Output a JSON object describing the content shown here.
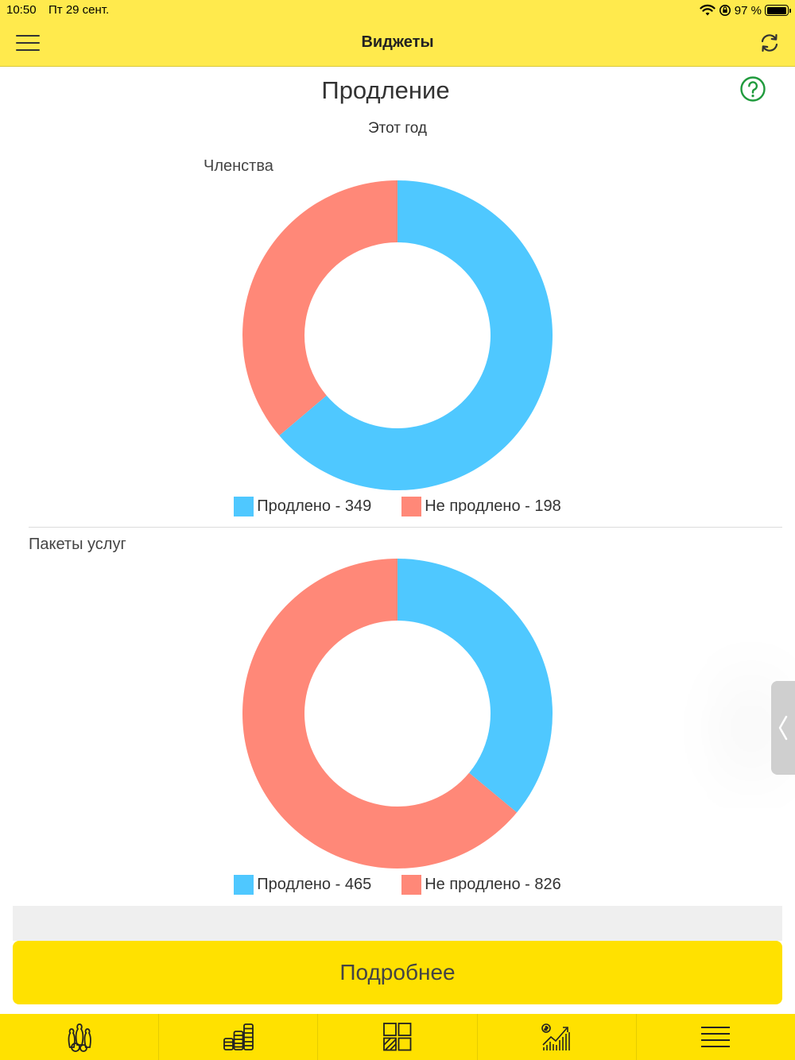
{
  "status_bar": {
    "time": "10:50",
    "date": "Пт 29 сент.",
    "battery": "97 %",
    "battery_level": 0.97
  },
  "nav": {
    "title": "Виджеты",
    "menu_icon": "hamburger-icon",
    "refresh_icon": "refresh-icon"
  },
  "header": {
    "title": "Продление",
    "period": "Этот год",
    "help_icon": "help-circle-icon"
  },
  "colors": {
    "renewed": "#4fc8ff",
    "not_renewed": "#ff8878",
    "accent": "#ffe100",
    "nav_bg": "#ffea4d",
    "help": "#1f9a3c"
  },
  "chart_data": [
    {
      "type": "pie",
      "title": "Членства",
      "donut": true,
      "series": [
        {
          "name": "Продлено",
          "value": 349
        },
        {
          "name": "Не продлено",
          "value": 198
        }
      ],
      "legend_labels": [
        "Продлено - 349",
        "Не продлено - 198"
      ],
      "legend_position": "bottom"
    },
    {
      "type": "pie",
      "title": "Пакеты услуг",
      "donut": true,
      "series": [
        {
          "name": "Продлено",
          "value": 465
        },
        {
          "name": "Не продлено",
          "value": 826
        }
      ],
      "legend_labels": [
        "Продлено - 465",
        "Не продлено - 826"
      ],
      "legend_position": "bottom"
    }
  ],
  "details_button": "Подробнее",
  "tabbar": [
    {
      "icon": "bowling-pins-icon"
    },
    {
      "icon": "coins-stack-icon"
    },
    {
      "icon": "widgets-grid-icon"
    },
    {
      "icon": "growth-chart-icon"
    },
    {
      "icon": "menu-lines-icon"
    }
  ],
  "side_handle_icon": "chevron-left-icon"
}
